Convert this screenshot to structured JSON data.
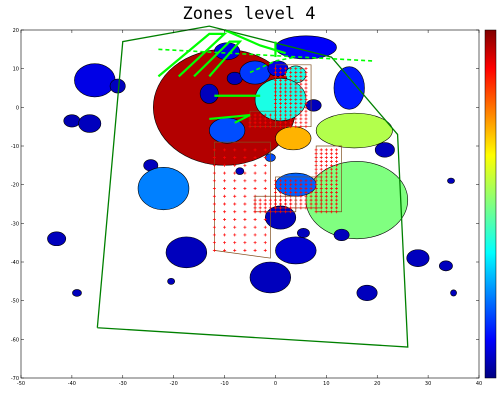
{
  "chart_data": {
    "type": "scatter",
    "title": "Zones level 4",
    "xlabel": "",
    "ylabel": "",
    "xlim": [
      -50,
      40
    ],
    "ylim": [
      -70,
      20
    ],
    "x_ticks": [
      "-50",
      "-40",
      "-30",
      "-20",
      "-10",
      "0",
      "10",
      "20",
      "30",
      "40"
    ],
    "y_ticks": [
      "20",
      "10",
      "0",
      "-10",
      "-20",
      "-30",
      "-40",
      "-50",
      "-60",
      "-70"
    ],
    "grid": false,
    "legend": "none",
    "colorbar": true,
    "colormap": "jet",
    "colors": {
      "dark_red_zone": "#800000",
      "cyan": "#00ffff",
      "aqua_green": "#40ffb0",
      "light_green": "#80ff80",
      "orange": "#ffb000",
      "blue": "#0000ff",
      "mid_blue": "#0030ff",
      "dark_blue": "#000090",
      "boundary": "#008000",
      "bright_green": "#00ff00",
      "grid_cross": "#ff0000"
    },
    "boundary_polygon": [
      [
        -35,
        -57
      ],
      [
        -30,
        17
      ],
      [
        -13,
        21
      ],
      [
        11,
        13
      ],
      [
        24,
        -7
      ],
      [
        26,
        -62
      ],
      [
        -35,
        -57
      ]
    ],
    "zones": [
      {
        "x": -10,
        "y": 0,
        "rx": 14,
        "ry": 15,
        "value": 0.95
      },
      {
        "x": -13,
        "y": 3.5,
        "rx": 1.8,
        "ry": 2.5,
        "value": 0.06
      },
      {
        "x": -35.5,
        "y": 7,
        "rx": 4,
        "ry": 4.3,
        "value": 0.1
      },
      {
        "x": -31,
        "y": 5.5,
        "rx": 1.5,
        "ry": 1.8,
        "value": 0.06
      },
      {
        "x": -40,
        "y": -3.5,
        "rx": 1.6,
        "ry": 1.6,
        "value": 0.05
      },
      {
        "x": -36.5,
        "y": -4.2,
        "rx": 2.2,
        "ry": 2.3,
        "value": 0.06
      },
      {
        "x": -9.5,
        "y": 14.5,
        "rx": 2.5,
        "ry": 2.2,
        "value": 0.1
      },
      {
        "x": -8,
        "y": 7.5,
        "rx": 1.5,
        "ry": 1.6,
        "value": 0.06
      },
      {
        "x": -4,
        "y": 9,
        "rx": 3,
        "ry": 3,
        "value": 0.18
      },
      {
        "x": 0.5,
        "y": 10,
        "rx": 2,
        "ry": 2,
        "value": 0.1
      },
      {
        "x": 6,
        "y": 15.5,
        "rx": 6,
        "ry": 3,
        "value": 0.12
      },
      {
        "x": 4,
        "y": 8.5,
        "rx": 2,
        "ry": 2.2,
        "value": 0.4
      },
      {
        "x": 14.5,
        "y": 5,
        "rx": 3,
        "ry": 5.5,
        "value": 0.15
      },
      {
        "x": 1,
        "y": 2,
        "rx": 5,
        "ry": 5.5,
        "value": 0.4
      },
      {
        "x": 7.5,
        "y": 0.5,
        "rx": 1.5,
        "ry": 1.5,
        "value": 0.06
      },
      {
        "x": -9.5,
        "y": -6,
        "rx": 3.5,
        "ry": 3.3,
        "value": 0.2
      },
      {
        "x": 3.5,
        "y": -8,
        "rx": 3.5,
        "ry": 3,
        "value": 0.7
      },
      {
        "x": 15.5,
        "y": -6,
        "rx": 7.5,
        "ry": 4.5,
        "value": 0.55
      },
      {
        "x": 21.5,
        "y": -11,
        "rx": 1.9,
        "ry": 1.9,
        "value": 0.06
      },
      {
        "x": 14,
        "y": -15.5,
        "rx": 1,
        "ry": 1,
        "value": 0.06
      },
      {
        "x": -24.5,
        "y": -15,
        "rx": 1.4,
        "ry": 1.5,
        "value": 0.06
      },
      {
        "x": -22,
        "y": -21,
        "rx": 5,
        "ry": 5.5,
        "value": 0.25
      },
      {
        "x": 16,
        "y": -24,
        "rx": 10,
        "ry": 10,
        "value": 0.5
      },
      {
        "x": 4,
        "y": -20,
        "rx": 4,
        "ry": 3,
        "value": 0.22
      },
      {
        "x": -7,
        "y": -16.5,
        "rx": 0.8,
        "ry": 0.9,
        "value": 0.06
      },
      {
        "x": -1,
        "y": -13,
        "rx": 1,
        "ry": 1,
        "value": 0.2
      },
      {
        "x": 1,
        "y": -28.5,
        "rx": 3,
        "ry": 3,
        "value": 0.06
      },
      {
        "x": 5.5,
        "y": -32.5,
        "rx": 1.2,
        "ry": 1.2,
        "value": 0.06
      },
      {
        "x": 13,
        "y": -33,
        "rx": 1.5,
        "ry": 1.5,
        "value": 0.06
      },
      {
        "x": 4,
        "y": -37,
        "rx": 4,
        "ry": 3.5,
        "value": 0.08
      },
      {
        "x": -17.5,
        "y": -37.5,
        "rx": 4,
        "ry": 4,
        "value": 0.06
      },
      {
        "x": -1,
        "y": -44,
        "rx": 4,
        "ry": 4,
        "value": 0.06
      },
      {
        "x": -20.5,
        "y": -45,
        "rx": 0.7,
        "ry": 0.8,
        "value": 0.06
      },
      {
        "x": -43,
        "y": -34,
        "rx": 1.8,
        "ry": 1.8,
        "value": 0.06
      },
      {
        "x": -39,
        "y": -48,
        "rx": 0.9,
        "ry": 0.9,
        "value": 0.06
      },
      {
        "x": 18,
        "y": -48,
        "rx": 2,
        "ry": 2,
        "value": 0.06
      },
      {
        "x": 28,
        "y": -39,
        "rx": 2.2,
        "ry": 2.2,
        "value": 0.06
      },
      {
        "x": 33.5,
        "y": -41,
        "rx": 1.3,
        "ry": 1.3,
        "value": 0.06
      },
      {
        "x": 35,
        "y": -48,
        "rx": 0.6,
        "ry": 0.8,
        "value": 0.06
      },
      {
        "x": 34.5,
        "y": -19,
        "rx": 0.7,
        "ry": 0.7,
        "value": 0.06
      }
    ],
    "green_lines": [
      [
        [
          -23,
          8
        ],
        [
          -13,
          19
        ],
        [
          -10,
          19
        ],
        [
          -19,
          8
        ]
      ],
      [
        [
          -16,
          8
        ],
        [
          -9,
          17
        ],
        [
          -7,
          17
        ],
        [
          -13,
          8
        ]
      ],
      [
        [
          -12,
          3
        ],
        [
          -3,
          3
        ]
      ],
      [
        [
          -13,
          -3
        ],
        [
          -5,
          -2
        ],
        [
          -8,
          -4
        ]
      ],
      [
        [
          0,
          17
        ],
        [
          0,
          13
        ]
      ],
      [
        [
          -10,
          20
        ],
        [
          -3,
          16
        ],
        [
          2,
          14
        ]
      ]
    ],
    "dashed_green_lines": [
      [
        [
          -23,
          15
        ],
        [
          19,
          12
        ]
      ],
      [
        [
          -5,
          9
        ],
        [
          0,
          12
        ],
        [
          4,
          13
        ]
      ]
    ],
    "red_grid_regions": [
      {
        "polygon": [
          [
            -12,
            -9
          ],
          [
            -1,
            -9
          ],
          [
            -1,
            -39
          ],
          [
            -12,
            -37
          ]
        ],
        "spacing": 2
      },
      {
        "polygon": [
          [
            0,
            -18
          ],
          [
            9,
            -18
          ],
          [
            9,
            -26
          ],
          [
            0,
            -26
          ]
        ],
        "spacing": 1
      },
      {
        "polygon": [
          [
            -4,
            -23
          ],
          [
            4,
            -23
          ],
          [
            4,
            -27
          ],
          [
            -4,
            -27
          ]
        ],
        "spacing": 1
      },
      {
        "polygon": [
          [
            8,
            -10
          ],
          [
            13,
            -10
          ],
          [
            13,
            -27
          ],
          [
            8,
            -27
          ]
        ],
        "spacing": 1
      },
      {
        "polygon": [
          [
            0,
            11
          ],
          [
            7,
            11
          ],
          [
            7,
            -5
          ],
          [
            0,
            -5
          ]
        ],
        "spacing": 1
      },
      {
        "polygon": [
          [
            -5,
            -1
          ],
          [
            0,
            -1
          ],
          [
            0,
            -5
          ],
          [
            -5,
            -5
          ]
        ],
        "spacing": 1
      }
    ]
  }
}
